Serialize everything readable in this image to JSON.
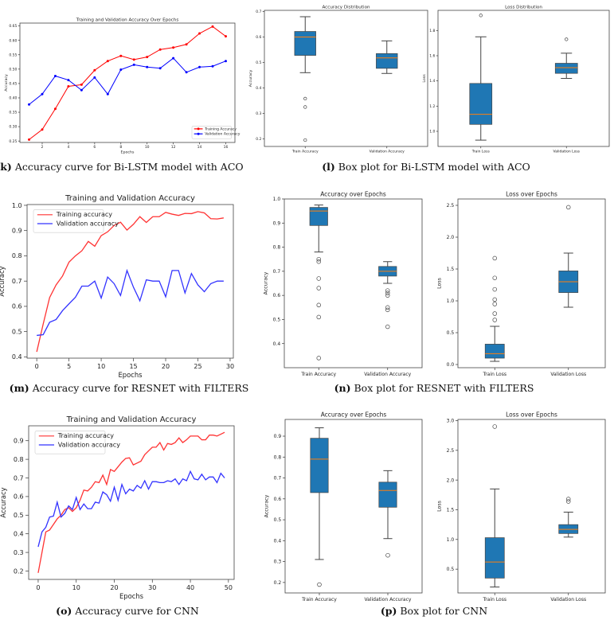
{
  "captions": [
    {
      "label": "(k)",
      "text": " Accuracy curve for Bi-LSTM model with ACO"
    },
    {
      "label": "(l)",
      "text": " Box plot for Bi-LSTM model with ACO"
    },
    {
      "label": "(m)",
      "text": " Accuracy curve for RESNET with FILTERS"
    },
    {
      "label": "(n)",
      "text": " Box plot for RESNET with FILTERS"
    },
    {
      "label": "(o)",
      "text": " Accuracy curve for CNN"
    },
    {
      "label": "(p)",
      "text": " Box plot for CNN"
    }
  ],
  "chart_data": [
    {
      "id": "k",
      "type": "line",
      "title": "Training and Validation Accuracy Over Epochs",
      "xlabel": "Epochs",
      "ylabel": "Accuracy",
      "xlim": [
        0.3,
        16.7
      ],
      "ylim": [
        0.245,
        0.66
      ],
      "xticks": [
        2,
        4,
        6,
        8,
        10,
        12,
        14,
        16
      ],
      "xtick_labels": [
        "2",
        "4",
        "6",
        "8",
        "10",
        "12",
        "14",
        "16"
      ],
      "yticks": [
        0.25,
        0.3,
        0.35,
        0.4,
        0.45,
        0.5,
        0.55,
        0.6,
        0.65
      ],
      "ytick_labels": [
        "0.25",
        "0.30",
        "0.35",
        "0.40",
        "0.45",
        "0.50",
        "0.55",
        "0.60",
        "0.65"
      ],
      "legend": "lower-right",
      "markers": true,
      "x": [
        1,
        2,
        3,
        4,
        5,
        6,
        7,
        8,
        9,
        10,
        11,
        12,
        13,
        14,
        15,
        16
      ],
      "series": [
        {
          "name": "Training Accuracy",
          "color": "#ff0000",
          "values": [
            0.255,
            0.29,
            0.362,
            0.44,
            0.446,
            0.496,
            0.528,
            0.546,
            0.533,
            0.542,
            0.568,
            0.575,
            0.586,
            0.624,
            0.648,
            0.614
          ]
        },
        {
          "name": "Validation Accuracy",
          "color": "#0000ff",
          "values": [
            0.377,
            0.413,
            0.476,
            0.462,
            0.427,
            0.471,
            0.413,
            0.498,
            0.515,
            0.507,
            0.503,
            0.538,
            0.489,
            0.507,
            0.51,
            0.528
          ]
        }
      ]
    },
    {
      "id": "l1",
      "type": "box",
      "title": "Accuracy Distribution",
      "ylabel": "Accuracy",
      "ylim": [
        0.17,
        0.705
      ],
      "yticks": [
        0.2,
        0.3,
        0.4,
        0.5,
        0.6,
        0.7
      ],
      "ytick_labels": [
        "0.2",
        "0.3",
        "0.4",
        "0.5",
        "0.6",
        "0.7"
      ],
      "categories": [
        "Train Accuracy",
        "Validation Accuracy"
      ],
      "boxes": [
        {
          "whislo": 0.46,
          "q1": 0.528,
          "med": 0.6,
          "q3": 0.622,
          "whishi": 0.68,
          "fliers": [
            0.358,
            0.325,
            0.195
          ]
        },
        {
          "whislo": 0.457,
          "q1": 0.477,
          "med": 0.518,
          "q3": 0.535,
          "whishi": 0.585,
          "fliers": []
        }
      ]
    },
    {
      "id": "l2",
      "type": "box",
      "title": "Loss Distribution",
      "ylabel": "Loss",
      "ylim": [
        0.88,
        1.96
      ],
      "yticks": [
        1.0,
        1.2,
        1.4,
        1.6,
        1.8
      ],
      "ytick_labels": [
        "1.0",
        "1.2",
        "1.4",
        "1.6",
        "1.8"
      ],
      "categories": [
        "Train Loss",
        "Validation Loss"
      ],
      "boxes": [
        {
          "whislo": 0.93,
          "q1": 1.055,
          "med": 1.135,
          "q3": 1.38,
          "whishi": 1.75,
          "fliers": [
            1.92
          ]
        },
        {
          "whislo": 1.42,
          "q1": 1.46,
          "med": 1.505,
          "q3": 1.54,
          "whishi": 1.62,
          "fliers": [
            1.73
          ]
        }
      ]
    },
    {
      "id": "m",
      "type": "line",
      "title": "Training and Validation Accuracy",
      "xlabel": "Epochs",
      "ylabel": "Accuracy",
      "xlim": [
        -1.5,
        30.5
      ],
      "ylim": [
        0.395,
        1.003
      ],
      "xticks": [
        0,
        5,
        10,
        15,
        20,
        25,
        30
      ],
      "xtick_labels": [
        "0",
        "5",
        "10",
        "15",
        "20",
        "25",
        "30"
      ],
      "yticks": [
        0.4,
        0.5,
        0.6,
        0.7,
        0.8,
        0.9,
        1.0
      ],
      "ytick_labels": [
        "0.4",
        "0.5",
        "0.6",
        "0.7",
        "0.8",
        "0.9",
        "1.0"
      ],
      "legend": "upper-left",
      "markers": false,
      "x": [
        0,
        1,
        2,
        3,
        4,
        5,
        6,
        7,
        8,
        9,
        10,
        11,
        12,
        13,
        14,
        15,
        16,
        17,
        18,
        19,
        20,
        21,
        22,
        23,
        24,
        25,
        26,
        27,
        28,
        29
      ],
      "series": [
        {
          "name": "Training accuracy",
          "color": "#ff3333",
          "values": [
            0.42,
            0.53,
            0.635,
            0.685,
            0.72,
            0.775,
            0.8,
            0.82,
            0.857,
            0.838,
            0.88,
            0.895,
            0.92,
            0.933,
            0.902,
            0.925,
            0.955,
            0.932,
            0.955,
            0.955,
            0.972,
            0.965,
            0.96,
            0.968,
            0.967,
            0.975,
            0.97,
            0.947,
            0.946,
            0.95
          ]
        },
        {
          "name": "Validation accuracy",
          "color": "#3333ff",
          "values": [
            0.485,
            0.488,
            0.537,
            0.548,
            0.583,
            0.61,
            0.636,
            0.68,
            0.68,
            0.7,
            0.633,
            0.716,
            0.69,
            0.643,
            0.742,
            0.676,
            0.622,
            0.705,
            0.7,
            0.7,
            0.638,
            0.742,
            0.742,
            0.653,
            0.73,
            0.685,
            0.658,
            0.69,
            0.7,
            0.7
          ]
        }
      ]
    },
    {
      "id": "n1",
      "type": "box",
      "title": "Accuracy over Epochs",
      "ylabel": "Accuracy",
      "ylim": [
        0.3,
        1.0
      ],
      "yticks": [
        0.4,
        0.5,
        0.6,
        0.7,
        0.8,
        0.9,
        1.0
      ],
      "ytick_labels": [
        "0.4",
        "0.5",
        "0.6",
        "0.7",
        "0.8",
        "0.9",
        "1.0"
      ],
      "categories": [
        "Train Accuracy",
        "Validation Accuracy"
      ],
      "boxes": [
        {
          "whislo": 0.78,
          "q1": 0.89,
          "med": 0.95,
          "q3": 0.965,
          "whishi": 0.975,
          "fliers": [
            0.75,
            0.74,
            0.67,
            0.63,
            0.56,
            0.51,
            0.34
          ]
        },
        {
          "whislo": 0.65,
          "q1": 0.68,
          "med": 0.7,
          "q3": 0.72,
          "whishi": 0.74,
          "fliers": [
            0.62,
            0.61,
            0.6,
            0.55,
            0.54,
            0.47
          ]
        }
      ]
    },
    {
      "id": "n2",
      "type": "box",
      "title": "Loss over Epochs",
      "ylabel": "Loss",
      "ylim": [
        -0.05,
        2.6
      ],
      "yticks": [
        0,
        0.5,
        1.0,
        1.5,
        2.0,
        2.5
      ],
      "ytick_labels": [
        "0.0",
        "0.5",
        "1.0",
        "1.5",
        "2.0",
        "2.5"
      ],
      "categories": [
        "Train Loss",
        "Validation Loss"
      ],
      "boxes": [
        {
          "whislo": 0.05,
          "q1": 0.1,
          "med": 0.17,
          "q3": 0.32,
          "whishi": 0.6,
          "fliers": [
            0.7,
            0.8,
            0.95,
            1.02,
            1.18,
            1.36,
            1.67
          ]
        },
        {
          "whislo": 0.9,
          "q1": 1.13,
          "med": 1.3,
          "q3": 1.47,
          "whishi": 1.75,
          "fliers": [
            2.47
          ]
        }
      ]
    },
    {
      "id": "o",
      "type": "line",
      "title": "Training and Validation Accuracy",
      "xlabel": "Epochs",
      "ylabel": "Accuracy",
      "xlim": [
        -2.5,
        51.5
      ],
      "ylim": [
        0.155,
        0.98
      ],
      "xticks": [
        0,
        10,
        20,
        30,
        40,
        50
      ],
      "xtick_labels": [
        "0",
        "10",
        "20",
        "30",
        "40",
        "50"
      ],
      "yticks": [
        0.2,
        0.3,
        0.4,
        0.5,
        0.6,
        0.7,
        0.8,
        0.9
      ],
      "ytick_labels": [
        "0.2",
        "0.3",
        "0.4",
        "0.5",
        "0.6",
        "0.7",
        "0.8",
        "0.9"
      ],
      "legend": "upper-left",
      "markers": false,
      "x": [
        0,
        1,
        2,
        3,
        4,
        5,
        6,
        7,
        8,
        9,
        10,
        11,
        12,
        13,
        14,
        15,
        16,
        17,
        18,
        19,
        20,
        21,
        22,
        23,
        24,
        25,
        26,
        27,
        28,
        29,
        30,
        31,
        32,
        33,
        34,
        35,
        36,
        37,
        38,
        39,
        40,
        41,
        42,
        43,
        44,
        45,
        46,
        47,
        48,
        49
      ],
      "series": [
        {
          "name": "Training accuracy",
          "color": "#ff3333",
          "values": [
            0.19,
            0.3,
            0.41,
            0.42,
            0.45,
            0.48,
            0.5,
            0.53,
            0.54,
            0.52,
            0.54,
            0.58,
            0.635,
            0.63,
            0.65,
            0.68,
            0.675,
            0.715,
            0.665,
            0.745,
            0.735,
            0.76,
            0.785,
            0.805,
            0.808,
            0.77,
            0.78,
            0.79,
            0.825,
            0.845,
            0.865,
            0.865,
            0.89,
            0.85,
            0.885,
            0.88,
            0.89,
            0.915,
            0.89,
            0.905,
            0.925,
            0.925,
            0.925,
            0.905,
            0.905,
            0.93,
            0.93,
            0.925,
            0.935,
            0.945
          ]
        },
        {
          "name": "Validation accuracy",
          "color": "#3333ff",
          "values": [
            0.33,
            0.41,
            0.435,
            0.49,
            0.495,
            0.57,
            0.49,
            0.51,
            0.55,
            0.53,
            0.595,
            0.53,
            0.56,
            0.535,
            0.535,
            0.57,
            0.565,
            0.625,
            0.61,
            0.575,
            0.65,
            0.58,
            0.665,
            0.615,
            0.64,
            0.63,
            0.66,
            0.645,
            0.685,
            0.64,
            0.68,
            0.68,
            0.675,
            0.675,
            0.685,
            0.68,
            0.695,
            0.665,
            0.695,
            0.685,
            0.735,
            0.695,
            0.69,
            0.72,
            0.69,
            0.705,
            0.705,
            0.675,
            0.725,
            0.7
          ]
        }
      ]
    },
    {
      "id": "p1",
      "type": "box",
      "title": "Accuracy over Epochs",
      "ylabel": "Accuracy",
      "ylim": [
        0.15,
        0.98
      ],
      "yticks": [
        0.2,
        0.3,
        0.4,
        0.5,
        0.6,
        0.7,
        0.8,
        0.9
      ],
      "ytick_labels": [
        "0.2",
        "0.3",
        "0.4",
        "0.5",
        "0.6",
        "0.7",
        "0.8",
        "0.9"
      ],
      "categories": [
        "Train Accuracy",
        "Validation Accuracy"
      ],
      "boxes": [
        {
          "whislo": 0.31,
          "q1": 0.63,
          "med": 0.79,
          "q3": 0.89,
          "whishi": 0.94,
          "fliers": [
            0.19
          ]
        },
        {
          "whislo": 0.41,
          "q1": 0.56,
          "med": 0.64,
          "q3": 0.68,
          "whishi": 0.735,
          "fliers": [
            0.33
          ]
        }
      ]
    },
    {
      "id": "p2",
      "type": "box",
      "title": "Loss over Epochs",
      "ylabel": "Loss",
      "ylim": [
        0.1,
        3.02
      ],
      "yticks": [
        0.5,
        1.0,
        1.5,
        2.0,
        2.5,
        3.0
      ],
      "ytick_labels": [
        "0.5",
        "1.0",
        "1.5",
        "2.0",
        "2.5",
        "3.0"
      ],
      "categories": [
        "Train Loss",
        "Validation Loss"
      ],
      "boxes": [
        {
          "whislo": 0.2,
          "q1": 0.35,
          "med": 0.62,
          "q3": 1.03,
          "whishi": 1.85,
          "fliers": [
            2.9
          ]
        },
        {
          "whislo": 1.04,
          "q1": 1.1,
          "med": 1.17,
          "q3": 1.25,
          "whishi": 1.46,
          "fliers": [
            1.64,
            1.68
          ]
        }
      ]
    }
  ],
  "colors": {
    "box_fill": "#1f77b4",
    "median": "#ff7f0e",
    "axis": "#333333"
  }
}
